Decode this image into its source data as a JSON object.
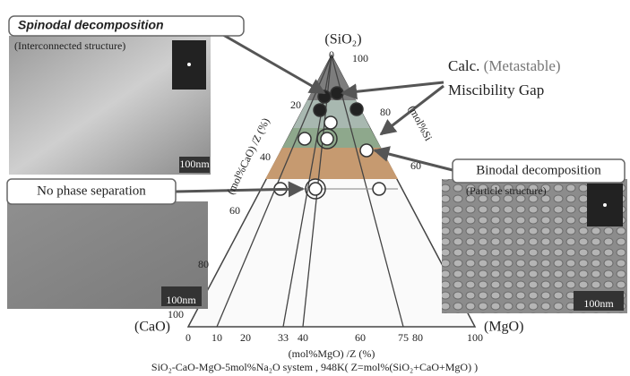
{
  "panels": {
    "spinodal": {
      "title": "Spinodal decomposition",
      "subtitle": "(Interconnected structure)",
      "scale": "100nm"
    },
    "no_phase": {
      "title": "No phase separation",
      "scale": "100nm"
    },
    "binodal": {
      "title": "Binodal decomposition",
      "subtitle": "(Particle structure)",
      "scale": "100nm"
    }
  },
  "annotation": {
    "calc": "Calc.",
    "metastable": "(Metastable)",
    "gap": "Miscibility Gap"
  },
  "diagram": {
    "apex": "(SiO₂)",
    "left_corner": "(CaO)",
    "right_corner": "(MgO)",
    "left_axis_label": "(mol%CaO) /Z (%)",
    "right_axis_label": "(mol%Si",
    "bottom_axis_label": "(mol%MgO) /Z (%)",
    "left_ticks": [
      0,
      20,
      40,
      60,
      80,
      100
    ],
    "right_ticks": [
      100,
      80,
      60
    ],
    "bottom_ticks": [
      0,
      10,
      20,
      33,
      40,
      60,
      75,
      80,
      100
    ]
  },
  "caption": "SiO₂-CaO-MgO-5mol%Na₂O system , 948K( Z=mol%(SiO₂+CaO+MgO) )"
}
